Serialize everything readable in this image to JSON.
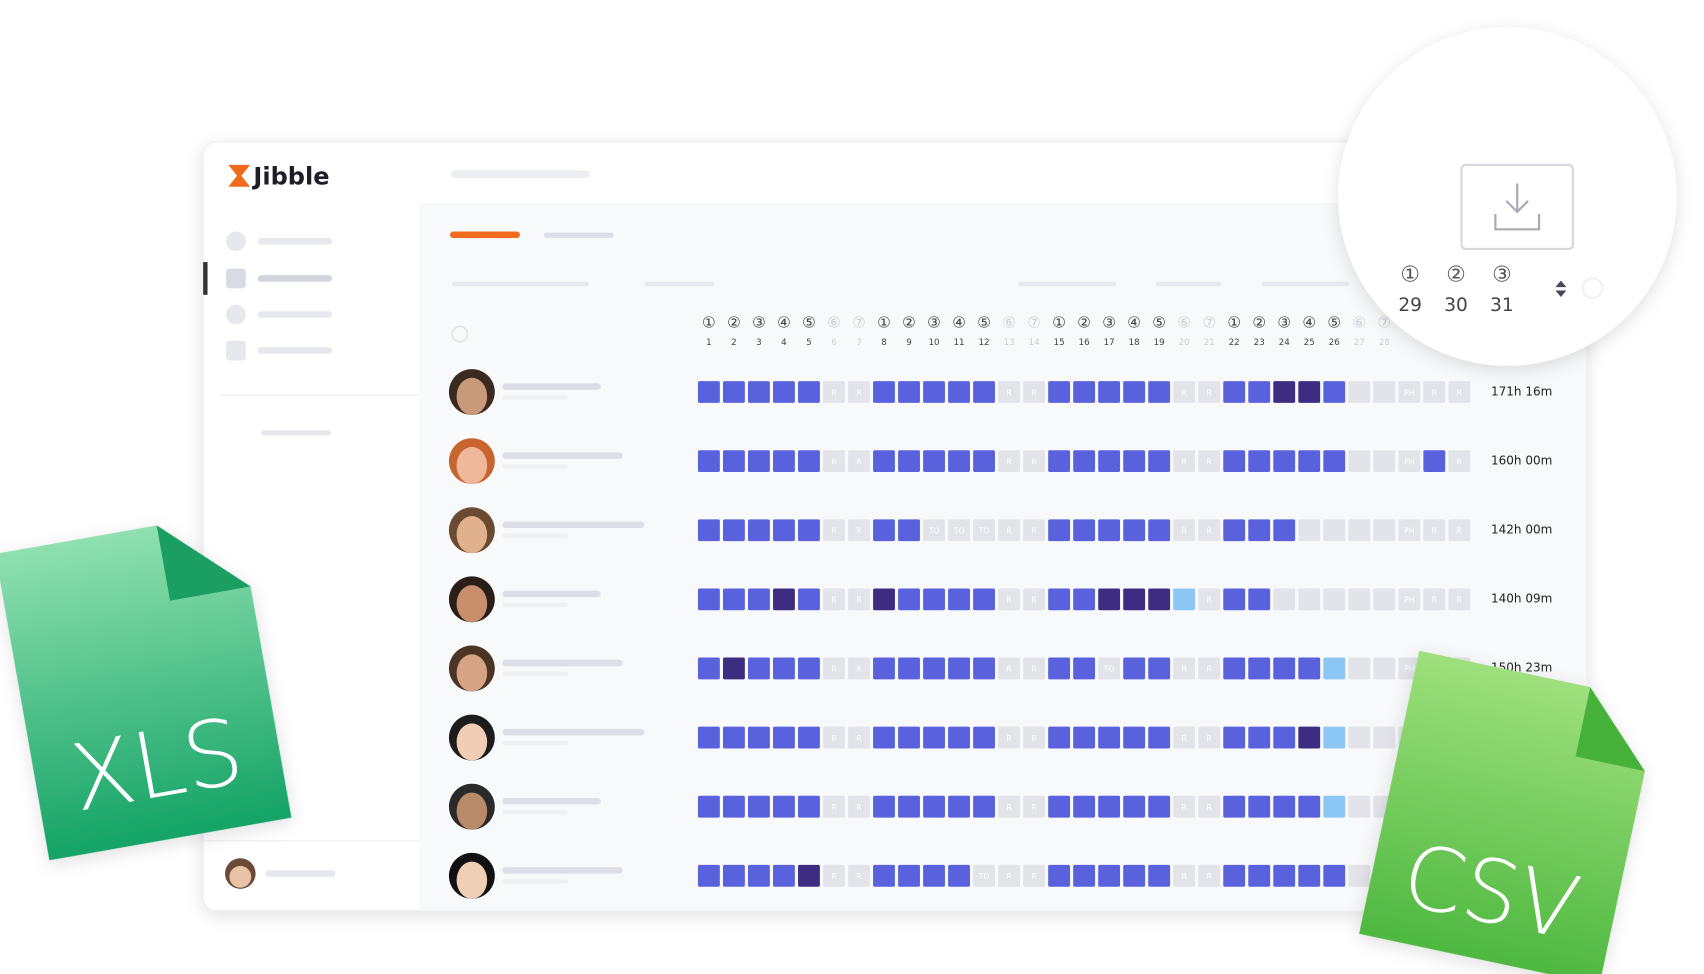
{
  "logo": "Jibble",
  "header": {
    "weekdays": [
      "①",
      "②",
      "③",
      "④",
      "⑤",
      "⑥",
      "⑦",
      "①",
      "②",
      "③",
      "④",
      "⑤",
      "⑥",
      "⑦",
      "①",
      "②",
      "③",
      "④",
      "⑤",
      "⑥",
      "⑦",
      "①",
      "②",
      "③",
      "④",
      "⑤",
      "⑥",
      "⑦"
    ],
    "days": [
      1,
      2,
      3,
      4,
      5,
      6,
      7,
      8,
      9,
      10,
      11,
      12,
      13,
      14,
      15,
      16,
      17,
      18,
      19,
      20,
      21,
      22,
      23,
      24,
      25,
      26,
      27,
      28
    ]
  },
  "rows": [
    {
      "cells": [
        "W",
        "W",
        "W",
        "W",
        "W",
        "R",
        "R",
        "W",
        "W",
        "W",
        "W",
        "W",
        "R",
        "R",
        "W",
        "W",
        "W",
        "W",
        "W",
        "R",
        "R",
        "W",
        "W",
        "D",
        "D",
        "W",
        "O",
        "O",
        "PH",
        "R",
        "R"
      ],
      "total": "171h 16m"
    },
    {
      "cells": [
        "W",
        "W",
        "W",
        "W",
        "W",
        "R",
        "R",
        "W",
        "W",
        "W",
        "W",
        "W",
        "R",
        "R",
        "W",
        "W",
        "W",
        "W",
        "W",
        "R",
        "R",
        "W",
        "W",
        "W",
        "W",
        "W",
        "O",
        "O",
        "PH",
        "W",
        "R"
      ],
      "total": "160h 00m"
    },
    {
      "cells": [
        "W",
        "W",
        "W",
        "W",
        "W",
        "R",
        "R",
        "W",
        "W",
        "TO",
        "TO",
        "TO",
        "R",
        "R",
        "W",
        "W",
        "W",
        "W",
        "W",
        "R",
        "R",
        "W",
        "W",
        "W",
        "O",
        "O",
        "O",
        "O",
        "PH",
        "R",
        "R"
      ],
      "total": "142h 00m"
    },
    {
      "cells": [
        "W",
        "W",
        "W",
        "D",
        "W",
        "R",
        "R",
        "D",
        "W",
        "W",
        "W",
        "W",
        "R",
        "R",
        "W",
        "W",
        "D",
        "D",
        "D",
        "L",
        "R",
        "W",
        "W",
        "O",
        "O",
        "O",
        "O",
        "O",
        "PH",
        "R",
        "R"
      ],
      "total": "140h 09m"
    },
    {
      "cells": [
        "W",
        "D",
        "W",
        "W",
        "W",
        "R",
        "R",
        "W",
        "W",
        "W",
        "W",
        "W",
        "R",
        "R",
        "W",
        "W",
        "TO",
        "W",
        "W",
        "R",
        "R",
        "W",
        "W",
        "W",
        "W",
        "L",
        "O",
        "O",
        "PH",
        "R",
        "R"
      ],
      "total": "150h 23m"
    },
    {
      "cells": [
        "W",
        "W",
        "W",
        "W",
        "W",
        "R",
        "R",
        "W",
        "W",
        "W",
        "W",
        "W",
        "R",
        "R",
        "W",
        "W",
        "W",
        "W",
        "W",
        "R",
        "R",
        "W",
        "W",
        "W",
        "D",
        "L",
        "O",
        "O",
        "PH",
        "R",
        "R"
      ]
    },
    {
      "cells": [
        "W",
        "W",
        "W",
        "W",
        "W",
        "R",
        "R",
        "W",
        "W",
        "W",
        "W",
        "W",
        "R",
        "R",
        "W",
        "W",
        "W",
        "W",
        "W",
        "R",
        "R",
        "W",
        "W",
        "W",
        "W",
        "L",
        "O",
        "O",
        "PH",
        "R",
        "R"
      ]
    },
    {
      "cells": [
        "W",
        "W",
        "W",
        "W",
        "D",
        "R",
        "R",
        "W",
        "W",
        "W",
        "W",
        "TO",
        "R",
        "R",
        "W",
        "W",
        "W",
        "W",
        "W",
        "R",
        "R",
        "W",
        "W",
        "W",
        "W",
        "W",
        "O",
        "O",
        "PH",
        "R",
        "R"
      ]
    }
  ],
  "zoom": {
    "weekdays": [
      "①",
      "②",
      "③"
    ],
    "days": [
      29,
      30,
      31
    ]
  },
  "files": {
    "xls": "XLS",
    "csv": "CSV"
  }
}
